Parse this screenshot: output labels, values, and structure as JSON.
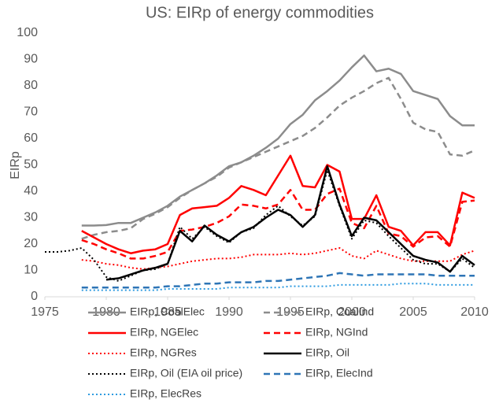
{
  "chart_data": {
    "type": "line",
    "title": "US: EIRp of energy commodities",
    "y_label": "EIRp",
    "x": [
      1975,
      1976,
      1977,
      1978,
      1979,
      1980,
      1981,
      1982,
      1983,
      1984,
      1985,
      1986,
      1987,
      1988,
      1989,
      1990,
      1991,
      1992,
      1993,
      1994,
      1995,
      1996,
      1997,
      1998,
      1999,
      2000,
      2001,
      2002,
      2003,
      2004,
      2005,
      2006,
      2007,
      2008,
      2009,
      2010
    ],
    "xlim": [
      1975,
      2010
    ],
    "xticks": [
      1975,
      1980,
      1985,
      1990,
      1995,
      2000,
      2005,
      2010
    ],
    "ylim": [
      0,
      100
    ],
    "yticks": [
      0,
      10,
      20,
      30,
      40,
      50,
      60,
      70,
      80,
      90,
      100
    ],
    "grid": false,
    "legend": "bottom",
    "series": [
      {
        "name": "EIRp, CoalElec",
        "color": "#8c8c8c",
        "line_style": "solid",
        "values": [
          null,
          null,
          null,
          27,
          27,
          27.2,
          28,
          28,
          30,
          32,
          34.5,
          38,
          40.5,
          43,
          46,
          49.5,
          51,
          53.5,
          56.5,
          60,
          65.5,
          69,
          74.5,
          78,
          82,
          87,
          91.5,
          85.5,
          86.5,
          84.5,
          78,
          76.5,
          75,
          68.5,
          65,
          65
        ]
      },
      {
        "name": "EIRp, CoalInd",
        "color": "#8c8c8c",
        "line_style": "dashed",
        "values": [
          null,
          null,
          null,
          22,
          23.5,
          24.5,
          25,
          26,
          29.5,
          31.5,
          34,
          37.5,
          40.5,
          43,
          45.5,
          49,
          51,
          53,
          55,
          57,
          59,
          61,
          64,
          68,
          72.5,
          75.5,
          78,
          81,
          83,
          75,
          66,
          63.5,
          62.5,
          54,
          53.5,
          55.5
        ]
      },
      {
        "name": "EIRp, NGElec",
        "color": "#ff0000",
        "line_style": "solid",
        "values": [
          null,
          null,
          null,
          25,
          22.5,
          20,
          18,
          16.5,
          17.5,
          18,
          20,
          31,
          33.5,
          34,
          34.5,
          37.5,
          42,
          40.5,
          38.5,
          46,
          53.5,
          42,
          41.5,
          50,
          47.5,
          29.5,
          29.5,
          38.5,
          26.5,
          25,
          19.5,
          24.5,
          24.5,
          19.5,
          39.5,
          37.5
        ]
      },
      {
        "name": "EIRp, NGInd",
        "color": "#ff0000",
        "line_style": "dashed",
        "values": [
          null,
          null,
          null,
          21.5,
          20,
          18,
          16.5,
          14.5,
          14.5,
          15.5,
          17,
          25,
          25.5,
          26.5,
          28,
          30.5,
          35,
          34.5,
          33.5,
          35,
          40.5,
          33,
          33,
          39,
          41,
          28,
          26,
          34.5,
          24,
          23,
          19,
          22.5,
          23,
          19,
          36,
          36.5
        ]
      },
      {
        "name": "EIRp, NGRes",
        "color": "#ff0000",
        "line_style": "dotted",
        "values": [
          null,
          null,
          null,
          14,
          13.5,
          12.5,
          12,
          11,
          10.5,
          11,
          11.5,
          12.5,
          13.5,
          14,
          14.5,
          14.5,
          15,
          16,
          16,
          16,
          16.5,
          16,
          16.5,
          17.5,
          18.5,
          15.5,
          14.5,
          17.5,
          16,
          14.5,
          13.5,
          13.5,
          13.5,
          13.5,
          16,
          17.5
        ]
      },
      {
        "name": "EIRp, Oil",
        "color": "#000000",
        "line_style": "solid",
        "values": [
          null,
          null,
          null,
          null,
          null,
          6.5,
          7,
          8.5,
          10,
          11,
          12.5,
          25,
          21,
          27,
          23.5,
          21,
          24.5,
          26.5,
          30,
          33,
          31,
          26.5,
          31,
          49.5,
          35,
          23,
          30,
          29,
          24.5,
          20,
          15.5,
          14,
          13,
          9.5,
          15.5,
          12
        ]
      },
      {
        "name": "EIRp, Oil (EIA oil price)",
        "color": "#000000",
        "line_style": "dotted",
        "values": [
          17,
          17,
          17.5,
          18.5,
          14,
          7.5,
          6,
          8,
          10,
          10.5,
          12.5,
          26.5,
          22,
          26.5,
          23,
          20.5,
          24.5,
          26,
          31,
          34.5,
          30.5,
          27,
          30.5,
          48,
          34.5,
          22,
          29,
          28,
          23,
          18.5,
          14,
          12.5,
          12.5,
          9.5,
          14.5,
          11
        ]
      },
      {
        "name": "EIRp, ElecInd",
        "color": "#2e75b6",
        "line_style": "dashed",
        "values": [
          null,
          null,
          null,
          3.5,
          3.5,
          3.5,
          3.5,
          3.5,
          3.5,
          3.5,
          4,
          4,
          4.5,
          5,
          5,
          5.5,
          5.5,
          5.5,
          6,
          6,
          6.5,
          7,
          7.5,
          8,
          9,
          8.5,
          8,
          8.5,
          8.5,
          8.5,
          8.5,
          8.5,
          8,
          8,
          8,
          8
        ]
      },
      {
        "name": "EIRp, ElecRes",
        "color": "#2e9be0",
        "line_style": "dotted",
        "values": [
          null,
          null,
          null,
          2.5,
          2.5,
          2.5,
          2.5,
          2.5,
          2.5,
          2.5,
          3,
          3,
          3,
          3,
          3,
          3.5,
          3.5,
          3.5,
          3.5,
          3.5,
          4,
          4,
          4,
          4,
          4.5,
          4.5,
          4.5,
          4.5,
          4.5,
          5,
          5,
          5,
          4.5,
          4.5,
          4.5,
          4.5
        ]
      }
    ]
  }
}
